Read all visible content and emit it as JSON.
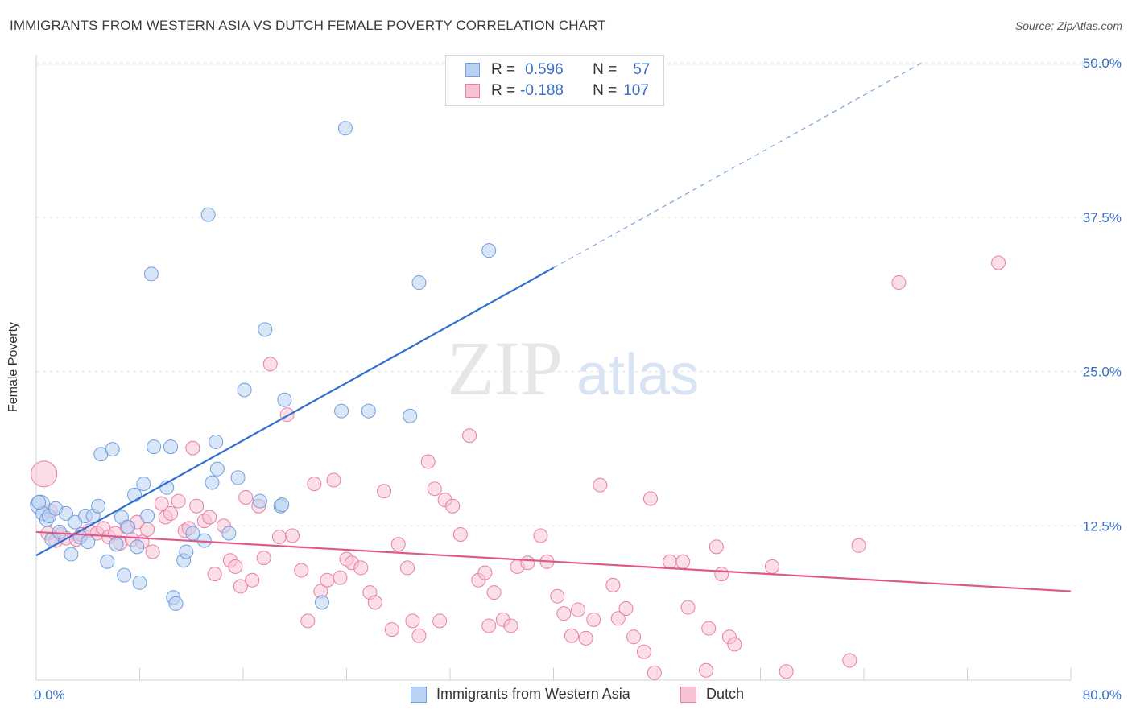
{
  "header": {
    "title": "IMMIGRANTS FROM WESTERN ASIA VS DUTCH FEMALE POVERTY CORRELATION CHART",
    "source": "Source: ZipAtlas.com"
  },
  "watermark": {
    "part1": "ZIP",
    "part2": "atlas"
  },
  "legend": {
    "rows": [
      {
        "r_label": "R =",
        "r_value": "0.596",
        "n_label": "N =",
        "n_value": "57",
        "color": "#6f9fe0",
        "fill": "#b9d1f3"
      },
      {
        "r_label": "R =",
        "r_value": "-0.188",
        "n_label": "N =",
        "n_value": "107",
        "color": "#e87fa3",
        "fill": "#f7c3d5"
      }
    ]
  },
  "bottom_legend": {
    "items": [
      {
        "label": "Immigrants from Western Asia",
        "color": "#6f9fe0",
        "fill": "#b9d1f3"
      },
      {
        "label": "Dutch",
        "color": "#e87fa3",
        "fill": "#f7c3d5"
      }
    ]
  },
  "chart_data": {
    "type": "scatter",
    "title": "IMMIGRANTS FROM WESTERN ASIA VS DUTCH FEMALE POVERTY CORRELATION CHART",
    "xlabel": "",
    "ylabel": "Female Poverty",
    "xlim": [
      0,
      80
    ],
    "ylim": [
      0,
      50
    ],
    "x_tick_labels": [
      "0.0%",
      "80.0%"
    ],
    "y_ticks": [
      12.5,
      25.0,
      37.5,
      50.0
    ],
    "y_tick_labels": [
      "12.5%",
      "25.0%",
      "37.5%",
      "50.0%"
    ],
    "grid": true,
    "legend_position": "top-center",
    "series": [
      {
        "name": "Immigrants from Western Asia",
        "color": "#6f9fe0",
        "fill": "#b9d1f3",
        "line_color": "#2f6fcf",
        "trend": {
          "x0": 0,
          "y0": 10.1,
          "x1": 40,
          "y1": 33.4,
          "dashed_to_x": 68.5,
          "dashed_to_y": 50.0
        },
        "points": [
          [
            0.3,
            14.2
          ],
          [
            0.5,
            13.5
          ],
          [
            0.8,
            13.0
          ],
          [
            1.0,
            13.3
          ],
          [
            1.2,
            11.4
          ],
          [
            1.5,
            13.9
          ],
          [
            1.8,
            12.0
          ],
          [
            2.3,
            13.5
          ],
          [
            2.7,
            10.2
          ],
          [
            3.0,
            12.8
          ],
          [
            3.4,
            11.6
          ],
          [
            3.8,
            13.3
          ],
          [
            4.0,
            11.2
          ],
          [
            4.4,
            13.3
          ],
          [
            4.8,
            14.1
          ],
          [
            5.0,
            18.3
          ],
          [
            5.5,
            9.6
          ],
          [
            5.9,
            18.7
          ],
          [
            6.2,
            11.0
          ],
          [
            6.6,
            13.2
          ],
          [
            6.8,
            8.5
          ],
          [
            7.1,
            12.4
          ],
          [
            7.6,
            15.0
          ],
          [
            7.8,
            10.8
          ],
          [
            8.0,
            7.9
          ],
          [
            8.3,
            15.9
          ],
          [
            8.6,
            13.3
          ],
          [
            8.9,
            32.9
          ],
          [
            9.1,
            18.9
          ],
          [
            10.1,
            15.6
          ],
          [
            10.4,
            18.9
          ],
          [
            10.6,
            6.7
          ],
          [
            10.8,
            6.2
          ],
          [
            11.4,
            9.7
          ],
          [
            11.6,
            10.4
          ],
          [
            12.1,
            11.9
          ],
          [
            13.0,
            11.3
          ],
          [
            13.3,
            37.7
          ],
          [
            13.6,
            16.0
          ],
          [
            13.9,
            19.3
          ],
          [
            14.0,
            17.1
          ],
          [
            14.9,
            11.9
          ],
          [
            15.6,
            16.4
          ],
          [
            16.1,
            23.5
          ],
          [
            17.3,
            14.5
          ],
          [
            17.7,
            28.4
          ],
          [
            18.9,
            14.1
          ],
          [
            19.0,
            14.2
          ],
          [
            19.2,
            22.7
          ],
          [
            22.1,
            6.3
          ],
          [
            23.6,
            21.8
          ],
          [
            23.9,
            44.7
          ],
          [
            25.7,
            21.8
          ],
          [
            28.9,
            21.4
          ],
          [
            29.6,
            32.2
          ],
          [
            35.0,
            34.8
          ],
          [
            0.2,
            14.4
          ]
        ]
      },
      {
        "name": "Dutch",
        "color": "#e87fa3",
        "fill": "#f7c3d5",
        "line_color": "#e0588a",
        "trend": {
          "x0": 0,
          "y0": 12.0,
          "x1": 80,
          "y1": 7.2
        },
        "points": [
          [
            0.6,
            16.7
          ],
          [
            0.9,
            11.9
          ],
          [
            1.1,
            13.7
          ],
          [
            1.5,
            11.3
          ],
          [
            1.9,
            11.8
          ],
          [
            2.3,
            11.5
          ],
          [
            3.1,
            11.4
          ],
          [
            3.5,
            11.8
          ],
          [
            4.1,
            12.1
          ],
          [
            4.7,
            11.9
          ],
          [
            5.2,
            12.3
          ],
          [
            5.6,
            11.6
          ],
          [
            6.1,
            11.9
          ],
          [
            6.5,
            11.1
          ],
          [
            7.0,
            12.4
          ],
          [
            7.4,
            11.4
          ],
          [
            7.8,
            12.8
          ],
          [
            8.2,
            11.2
          ],
          [
            8.6,
            12.2
          ],
          [
            9.0,
            10.4
          ],
          [
            9.7,
            14.3
          ],
          [
            10.0,
            13.2
          ],
          [
            10.4,
            13.5
          ],
          [
            11.0,
            14.5
          ],
          [
            11.5,
            12.1
          ],
          [
            11.8,
            12.3
          ],
          [
            12.1,
            18.8
          ],
          [
            12.4,
            14.1
          ],
          [
            13.0,
            12.9
          ],
          [
            13.4,
            13.2
          ],
          [
            13.8,
            8.6
          ],
          [
            14.5,
            12.5
          ],
          [
            15.0,
            9.7
          ],
          [
            15.4,
            9.2
          ],
          [
            15.8,
            7.6
          ],
          [
            16.2,
            14.8
          ],
          [
            16.7,
            8.1
          ],
          [
            17.2,
            14.1
          ],
          [
            17.6,
            9.9
          ],
          [
            18.1,
            25.6
          ],
          [
            18.8,
            11.6
          ],
          [
            19.4,
            21.5
          ],
          [
            19.8,
            11.7
          ],
          [
            20.5,
            8.9
          ],
          [
            21.0,
            4.8
          ],
          [
            21.5,
            15.9
          ],
          [
            22.0,
            7.2
          ],
          [
            22.5,
            8.1
          ],
          [
            23.0,
            16.2
          ],
          [
            23.5,
            8.3
          ],
          [
            24.0,
            9.8
          ],
          [
            24.4,
            9.5
          ],
          [
            25.1,
            9.1
          ],
          [
            25.8,
            7.1
          ],
          [
            26.2,
            6.3
          ],
          [
            26.9,
            15.3
          ],
          [
            27.5,
            4.1
          ],
          [
            28.0,
            11.0
          ],
          [
            28.7,
            9.1
          ],
          [
            29.1,
            4.8
          ],
          [
            29.6,
            3.6
          ],
          [
            30.3,
            17.7
          ],
          [
            30.8,
            15.5
          ],
          [
            31.2,
            4.8
          ],
          [
            31.6,
            14.6
          ],
          [
            32.2,
            14.1
          ],
          [
            32.8,
            11.8
          ],
          [
            33.5,
            19.8
          ],
          [
            34.2,
            8.1
          ],
          [
            34.7,
            8.7
          ],
          [
            35.0,
            4.4
          ],
          [
            35.4,
            7.1
          ],
          [
            36.1,
            4.9
          ],
          [
            36.7,
            4.4
          ],
          [
            37.2,
            9.2
          ],
          [
            38.0,
            9.5
          ],
          [
            39.0,
            11.7
          ],
          [
            39.5,
            9.6
          ],
          [
            40.3,
            6.8
          ],
          [
            40.8,
            5.4
          ],
          [
            41.4,
            3.6
          ],
          [
            41.9,
            5.7
          ],
          [
            42.5,
            3.4
          ],
          [
            43.1,
            4.9
          ],
          [
            43.6,
            15.8
          ],
          [
            44.6,
            7.7
          ],
          [
            45.0,
            5.0
          ],
          [
            45.6,
            5.8
          ],
          [
            46.2,
            3.5
          ],
          [
            47.0,
            2.3
          ],
          [
            47.5,
            14.7
          ],
          [
            47.8,
            0.6
          ],
          [
            49.0,
            9.6
          ],
          [
            50.0,
            9.6
          ],
          [
            50.4,
            5.9
          ],
          [
            51.8,
            0.8
          ],
          [
            52.0,
            4.2
          ],
          [
            52.6,
            10.8
          ],
          [
            53.0,
            8.6
          ],
          [
            53.6,
            3.5
          ],
          [
            54.0,
            2.9
          ],
          [
            56.9,
            9.2
          ],
          [
            58.0,
            0.7
          ],
          [
            62.9,
            1.6
          ],
          [
            63.6,
            10.9
          ],
          [
            66.7,
            32.2
          ],
          [
            74.4,
            33.8
          ]
        ]
      }
    ]
  }
}
